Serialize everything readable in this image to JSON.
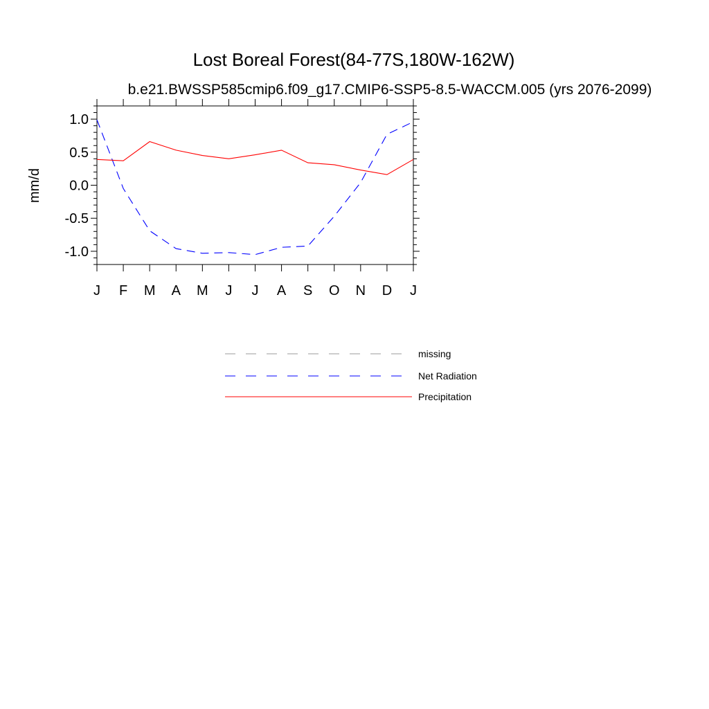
{
  "chart_data": {
    "type": "line",
    "title": "Lost Boreal Forest(84-77S,180W-162W)",
    "subtitle": "b.e21.BWSSP585cmip6.f09_g17.CMIP6-SSP5-8.5-WACCM.005 (yrs 2076-2099)",
    "xlabel": "",
    "ylabel": "mm/d",
    "categories": [
      "J",
      "F",
      "M",
      "A",
      "M",
      "J",
      "J",
      "A",
      "S",
      "O",
      "N",
      "D",
      "J"
    ],
    "ylim": [
      -1.2,
      1.2
    ],
    "yticks": [
      1.0,
      0.5,
      0.0,
      -0.5,
      -1.0
    ],
    "ytick_labels": [
      "1.0",
      "0.5",
      "0.0",
      "-0.5",
      "-1.0"
    ],
    "grid": false,
    "legend_position": "below",
    "series": [
      {
        "name": "Net Radiation",
        "color": "#0000ff",
        "dash": "dashed",
        "values": [
          0.99,
          -0.05,
          -0.69,
          -0.96,
          -1.03,
          -1.02,
          -1.05,
          -0.94,
          -0.92,
          -0.47,
          0.04,
          0.77,
          0.96
        ]
      },
      {
        "name": "Precipitation",
        "color": "#ff0000",
        "dash": "solid",
        "values": [
          0.39,
          0.37,
          0.66,
          0.53,
          0.45,
          0.4,
          0.46,
          0.53,
          0.34,
          0.31,
          0.23,
          0.16,
          0.39
        ]
      }
    ],
    "legend": [
      {
        "label": "missing",
        "color": "#999999",
        "dash": "dashed"
      },
      {
        "label": "Net Radiation",
        "color": "#0000ff",
        "dash": "dashed"
      },
      {
        "label": "Precipitation",
        "color": "#ff0000",
        "dash": "solid"
      }
    ]
  }
}
